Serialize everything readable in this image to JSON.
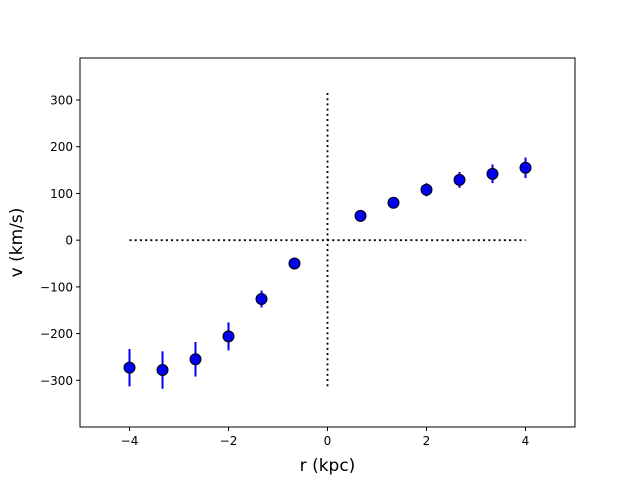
{
  "chart_data": {
    "type": "scatter",
    "xlabel": "r (kpc)",
    "ylabel": "v (km/s)",
    "xlim": [
      -5,
      5
    ],
    "ylim": [
      -400,
      390
    ],
    "grid": false,
    "x_ticks": [
      -4,
      -2,
      0,
      2,
      4
    ],
    "y_ticks": [
      -300,
      -200,
      -100,
      0,
      100,
      200,
      300
    ],
    "marker_color": "#0000ee",
    "marker_edge_color": "#000000",
    "errorbar_color": "#0000ee",
    "reference_line_color": "#000000",
    "points": [
      {
        "x": -4.0,
        "y": -273,
        "err": 40
      },
      {
        "x": -3.333,
        "y": -278,
        "err": 40
      },
      {
        "x": -2.667,
        "y": -255,
        "err": 37
      },
      {
        "x": -2.0,
        "y": -206,
        "err": 30
      },
      {
        "x": -1.333,
        "y": -126,
        "err": 18
      },
      {
        "x": -0.667,
        "y": -50,
        "err": 6
      },
      {
        "x": 0.667,
        "y": 52,
        "err": 6
      },
      {
        "x": 1.333,
        "y": 80,
        "err": 9
      },
      {
        "x": 2.0,
        "y": 108,
        "err": 14
      },
      {
        "x": 2.667,
        "y": 129,
        "err": 17
      },
      {
        "x": 3.333,
        "y": 142,
        "err": 20
      },
      {
        "x": 4.0,
        "y": 155,
        "err": 22
      }
    ],
    "reference_lines": [
      {
        "orientation": "horizontal",
        "value": 0,
        "from": -4,
        "to": 4,
        "style": "dotted"
      },
      {
        "orientation": "vertical",
        "value": 0,
        "from": -315,
        "to": 315,
        "style": "dotted"
      }
    ]
  }
}
